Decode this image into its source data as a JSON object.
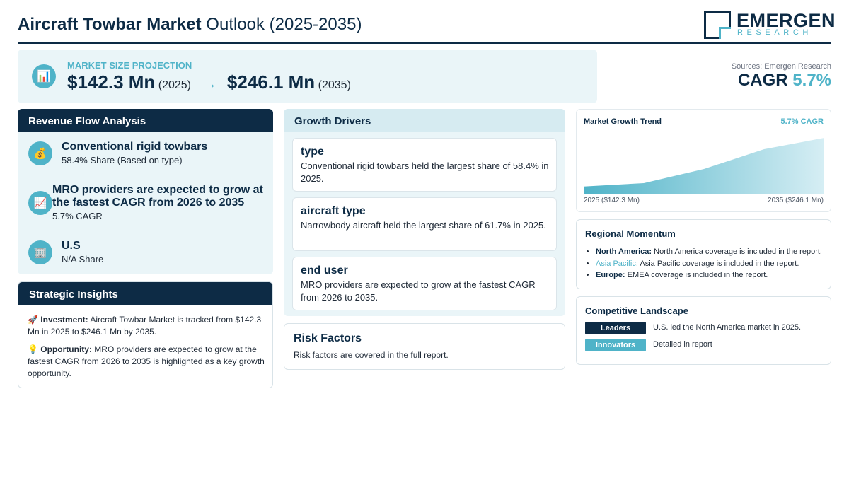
{
  "header": {
    "title_bold": "Aircraft Towbar Market",
    "title_rest": "Outlook (2025-2035)",
    "logo_main": "EMERGEN",
    "logo_sub": "RESEARCH"
  },
  "projection": {
    "icon": "bar-chart-icon",
    "label": "MARKET SIZE PROJECTION",
    "start_value": "$142.3 Mn",
    "start_year": "(2025)",
    "arrow": "→",
    "end_value": "$246.1 Mn",
    "end_year": "(2035)"
  },
  "sources": "Sources: Emergen Research",
  "cagr": {
    "label": "CAGR",
    "value": "5.7%"
  },
  "revenue_flow": {
    "title": "Revenue Flow Analysis",
    "items": [
      {
        "icon": "money-bag-icon",
        "title": "Conventional rigid towbars",
        "sub": "58.4% Share (Based on type)"
      },
      {
        "icon": "chart-up-icon",
        "title": "MRO providers are expected to grow at the fastest CAGR from 2026 to 2035",
        "sub": "5.7% CAGR"
      },
      {
        "icon": "building-icon",
        "title": "U.S",
        "sub": "N/A Share"
      }
    ]
  },
  "strategic_insights": {
    "title": "Strategic Insights",
    "items": [
      {
        "icon": "rocket-icon",
        "label": "Investment:",
        "text": "Aircraft Towbar Market is tracked from $142.3 Mn in 2025 to $246.1 Mn by 2035."
      },
      {
        "icon": "lightbulb-icon",
        "label": "Opportunity:",
        "text": "MRO providers are expected to grow at the fastest CAGR from 2026 to 2035 is highlighted as a key growth opportunity."
      }
    ]
  },
  "growth_drivers": {
    "title": "Growth Drivers",
    "cards": [
      {
        "title": "type",
        "text": "Conventional rigid towbars held the largest share of 58.4% in 2025."
      },
      {
        "title": "aircraft type",
        "text": "Narrowbody aircraft held the largest share of 61.7% in 2025."
      },
      {
        "title": "end user",
        "text": "MRO providers are expected to grow at the fastest CAGR from 2026 to 2035."
      }
    ]
  },
  "risk_factors": {
    "title": "Risk Factors",
    "text": "Risk factors are covered in the full report."
  },
  "market_trend": {
    "title": "Market Growth Trend",
    "cagr_label": "5.7% CAGR",
    "start_label": "2025 ($142.3 Mn)",
    "end_label": "2035 ($246.1 Mn)"
  },
  "chart_data": {
    "type": "area",
    "title": "Market Growth Trend",
    "x": [
      "2025",
      "2035"
    ],
    "series": [
      {
        "values": [
          142.3,
          246.1
        ]
      }
    ],
    "shape_points": [
      0.14,
      0.2,
      0.45,
      0.8,
      1.0
    ],
    "xlabel": "",
    "ylabel": "",
    "grid": false
  },
  "regional_momentum": {
    "title": "Regional Momentum",
    "items": [
      {
        "region": "North America:",
        "text": "North America coverage is included in the report."
      },
      {
        "region": "Asia Pacific:",
        "text": "Asia Pacific coverage is included in the report."
      },
      {
        "region": "Europe:",
        "text": "EMEA coverage is included in the report."
      }
    ]
  },
  "competitive_landscape": {
    "title": "Competitive Landscape",
    "rows": [
      {
        "tag": "Leaders",
        "text": "U.S. led the North America market in 2025."
      },
      {
        "tag": "Innovators",
        "text": "Detailed in report"
      }
    ]
  },
  "colors": {
    "navy": "#0d2b45",
    "accent": "#4fb3c8",
    "panel_bg": "#eaf5f8"
  }
}
